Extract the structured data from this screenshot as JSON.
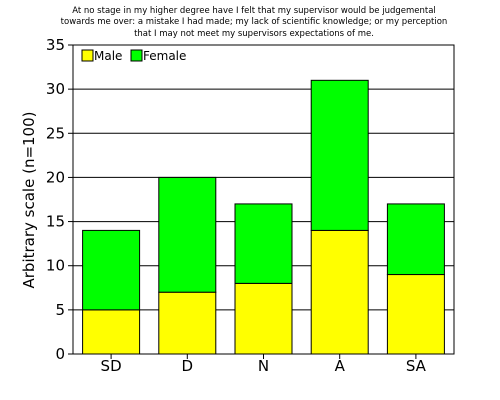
{
  "chart_data": {
    "type": "bar",
    "stacked": true,
    "title_lines": [
      "At no stage in my higher degree have I felt that my supervisor would be judgemental",
      "towards me over: a mistake I had made; my lack of scientific knowledge; or my perception",
      "that I may not meet my supervisors expectations of me."
    ],
    "xlabel": "",
    "ylabel": "Arbitrary scale (n=100)",
    "categories": [
      "SD",
      "D",
      "N",
      "A",
      "SA"
    ],
    "series": [
      {
        "name": "Male",
        "color": "#ffff00",
        "values": [
          5,
          7,
          8,
          14,
          9
        ]
      },
      {
        "name": "Female",
        "color": "#00ff00",
        "values": [
          9,
          13,
          9,
          17,
          8
        ]
      }
    ],
    "ylim": [
      0,
      35
    ],
    "yticks": [
      0,
      5,
      10,
      15,
      20,
      25,
      30,
      35
    ],
    "grid": true,
    "legend_position": "top-left"
  }
}
